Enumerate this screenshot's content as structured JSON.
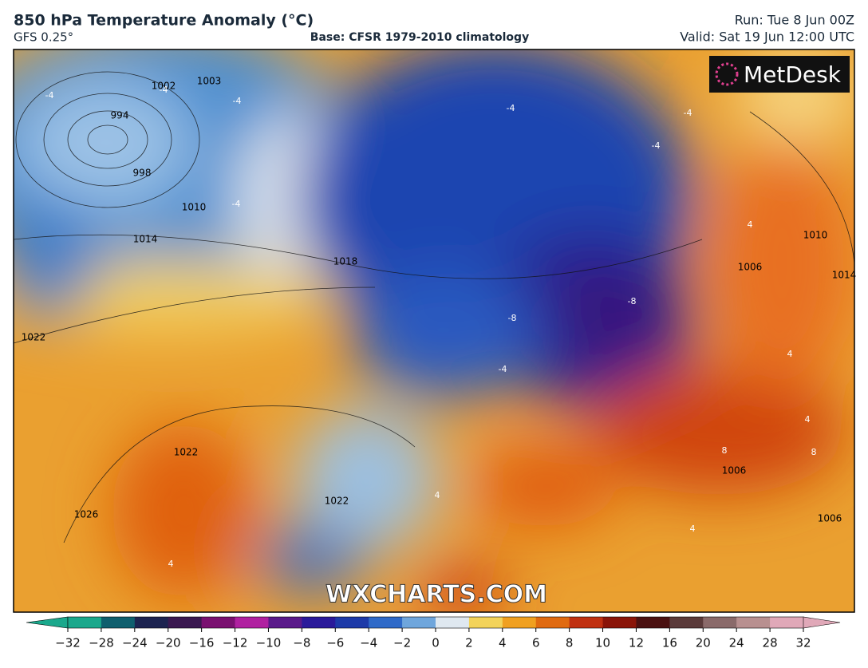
{
  "header": {
    "title": "850 hPa Temperature Anomaly (°C)",
    "model": "GFS 0.25°",
    "base": "Base: CFSR 1979-2010 climatology",
    "run": "Run: Tue 8 Jun 00Z",
    "valid": "Valid: Sat 19 Jun 12:00 UTC"
  },
  "map": {
    "logo": "MetDesk",
    "watermark": "WXCHARTS.COM",
    "isobar_labels": [
      "1002",
      "1003",
      "994",
      "998",
      "1010",
      "1014",
      "1018",
      "1022",
      "1022",
      "1026",
      "1022",
      "1006",
      "1010",
      "1014",
      "1006",
      "1006"
    ],
    "anomaly_labels": [
      "-4",
      "-4",
      "-4",
      "-4",
      "-4",
      "-4",
      "-4",
      "-8",
      "-8",
      "-4",
      "8",
      "8",
      "4",
      "4",
      "4",
      "4",
      "4",
      "4"
    ]
  },
  "colorbar": {
    "ticks": [
      {
        "value": -32,
        "label": "−32"
      },
      {
        "value": -28,
        "label": "−28"
      },
      {
        "value": -24,
        "label": "−24"
      },
      {
        "value": -20,
        "label": "−20"
      },
      {
        "value": -16,
        "label": "−16"
      },
      {
        "value": -12,
        "label": "−12"
      },
      {
        "value": -10,
        "label": "−10"
      },
      {
        "value": -8,
        "label": "−8"
      },
      {
        "value": -6,
        "label": "−6"
      },
      {
        "value": -4,
        "label": "−4"
      },
      {
        "value": -2,
        "label": "−2"
      },
      0,
      2,
      4,
      6,
      8,
      10,
      12,
      16,
      20,
      24,
      28,
      32
    ],
    "colors": [
      "#1aa88c",
      "#0f5f6e",
      "#1c2350",
      "#3a1850",
      "#7a1070",
      "#b020a0",
      "#5a1a8a",
      "#2a1a9a",
      "#1d3aa8",
      "#2f6ac8",
      "#6fa6dc",
      "#dfe8f0",
      "#f3d35a",
      "#f0a020",
      "#e06a10",
      "#c03010",
      "#8a1408",
      "#4a1010",
      "#5a3a3a",
      "#8a6a6a",
      "#b89090",
      "#e0a8b8"
    ]
  }
}
